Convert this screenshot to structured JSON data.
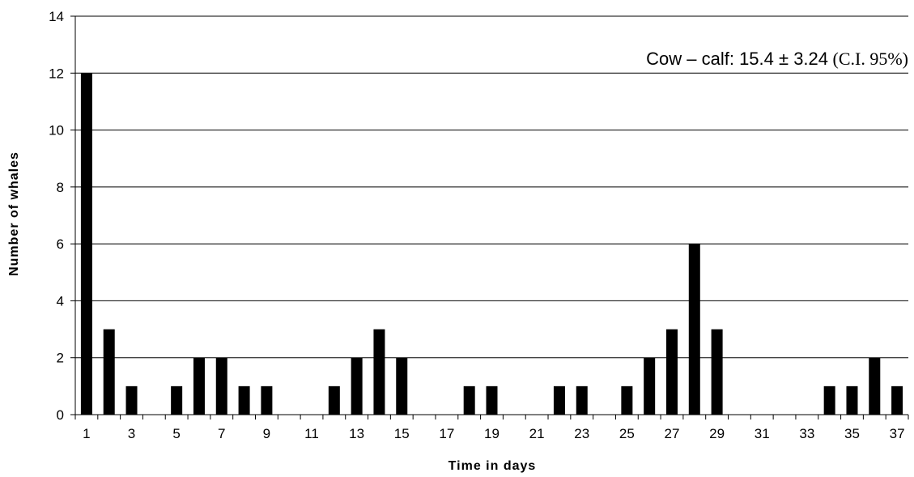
{
  "chart_data": {
    "type": "bar",
    "x": [
      1,
      2,
      3,
      4,
      5,
      6,
      7,
      8,
      9,
      10,
      11,
      12,
      13,
      14,
      15,
      16,
      17,
      18,
      19,
      20,
      21,
      22,
      23,
      24,
      25,
      26,
      27,
      28,
      29,
      30,
      31,
      32,
      33,
      34,
      35,
      36,
      37
    ],
    "values": [
      12,
      3,
      1,
      0,
      1,
      2,
      2,
      1,
      1,
      0,
      0,
      1,
      2,
      3,
      2,
      0,
      0,
      1,
      1,
      0,
      0,
      1,
      1,
      0,
      1,
      2,
      3,
      6,
      3,
      0,
      0,
      0,
      0,
      1,
      1,
      2,
      1
    ],
    "xtick_labels": [
      "1",
      "3",
      "5",
      "7",
      "9",
      "11",
      "13",
      "15",
      "17",
      "19",
      "21",
      "23",
      "25",
      "27",
      "29",
      "31",
      "33",
      "35",
      "37"
    ],
    "yticks": [
      "0",
      "2",
      "4",
      "6",
      "8",
      "10",
      "12",
      "14"
    ],
    "ylim": [
      0,
      14
    ],
    "xlabel": "Time in days",
    "ylabel": "Number of whales",
    "grid": "horizontal",
    "bar_color": "#000000",
    "annotation": {
      "prefix": "Cow – calf: 15.4 ±  3.24",
      "suffix": " (C.I. 95%)"
    }
  }
}
